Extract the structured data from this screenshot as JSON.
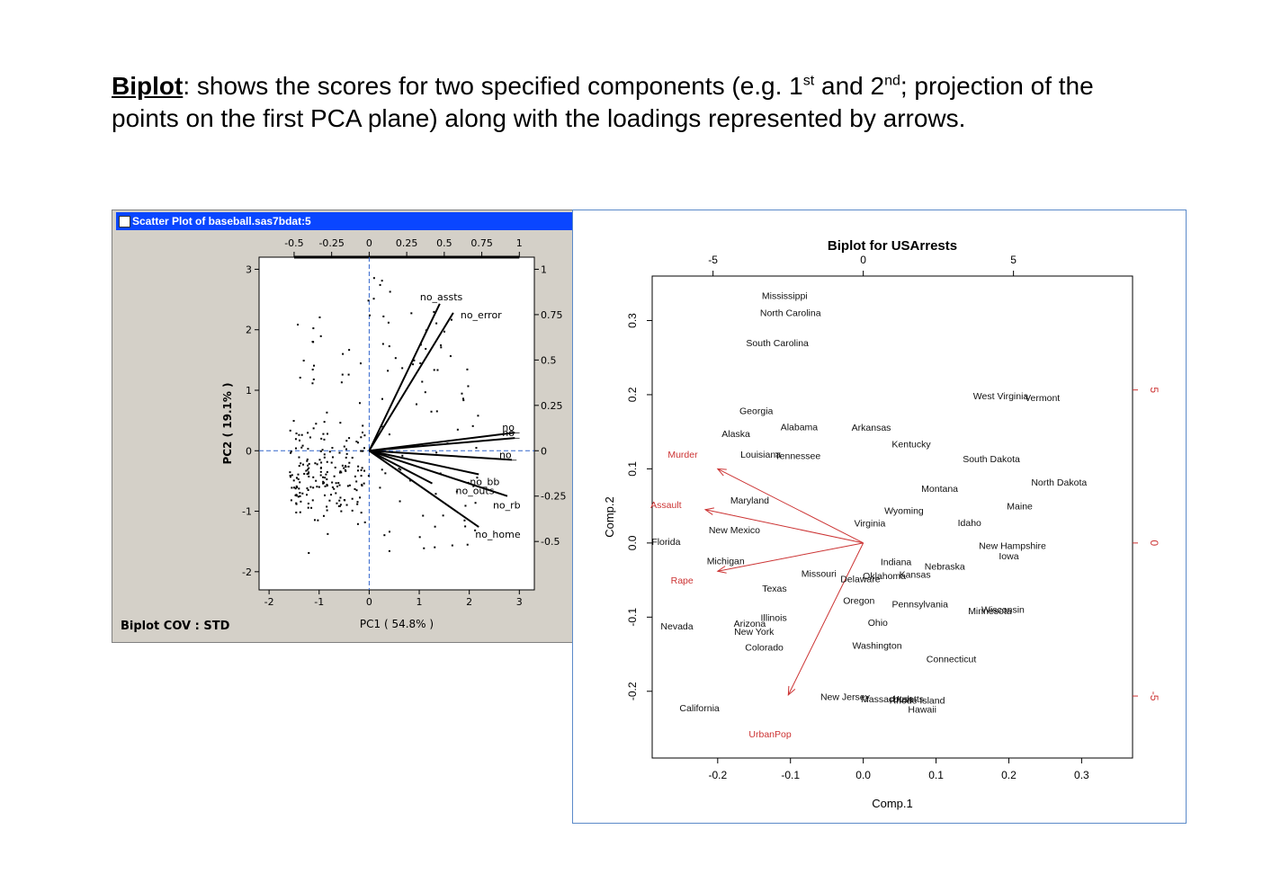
{
  "heading": {
    "keyword": "Biplot",
    "part1": ": shows the scores for two specified components (e.g. 1",
    "sup1": "st",
    "part2": " and 2",
    "sup2": "nd",
    "part3": "; projection of the points on the first PCA plane) along with the loadings represented by arrows."
  },
  "left_window": {
    "title": "Scatter Plot of baseball.sas7bdat:5",
    "footer": "Biplot COV : STD"
  },
  "colors": {
    "accent": "#cc3333",
    "dashed": "#3366cc",
    "titlebar": "#0a46ff"
  },
  "chart_data": [
    {
      "type": "scatter",
      "title": "",
      "xlabel": "PC1 ( 54.8% )",
      "ylabel": "PC2 ( 19.1% )",
      "xlim": [
        -2.2,
        3.3
      ],
      "ylim": [
        -2.3,
        3.2
      ],
      "xticks": [
        "-2",
        "-1",
        "0",
        "1",
        "2",
        "3"
      ],
      "yticks": [
        "-2",
        "-1",
        "0",
        "1",
        "2",
        "3"
      ],
      "top_ticks": [
        "-0.5",
        "-0.25",
        "0",
        "0.25",
        "0.5",
        "0.75",
        "1"
      ],
      "right_ticks": [
        "-0.5",
        "-0.25",
        "0",
        "0.25",
        "0.5",
        "0.75",
        "1"
      ],
      "loadings": [
        {
          "name": "no_assts",
          "x": 0.47,
          "y": 0.81
        },
        {
          "name": "no_error",
          "x": 0.56,
          "y": 0.76
        },
        {
          "name": "no_",
          "x": 0.97,
          "y": 0.1
        },
        {
          "name": "no_",
          "x": 0.97,
          "y": 0.07
        },
        {
          "name": "no_",
          "x": 0.95,
          "y": -0.05
        },
        {
          "name": "no_bb",
          "x": 0.73,
          "y": -0.13
        },
        {
          "name": "no_outs",
          "x": 0.42,
          "y": -0.18
        },
        {
          "name": "no_rb",
          "x": 0.92,
          "y": -0.25
        },
        {
          "name": "no_home",
          "x": 0.73,
          "y": -0.42
        }
      ]
    },
    {
      "type": "scatter",
      "title": "Biplot for USArrests",
      "xlabel": "Comp.1",
      "ylabel": "Comp.2",
      "xlim": [
        -0.29,
        0.37
      ],
      "ylim": [
        -0.29,
        0.36
      ],
      "xticks": [
        "-0.2",
        "-0.1",
        "0.0",
        "0.1",
        "0.2",
        "0.3"
      ],
      "yticks": [
        "-0.2",
        "-0.1",
        "0.0",
        "0.1",
        "0.2",
        "0.3"
      ],
      "top_ticks": [
        "-5",
        "0",
        "5"
      ],
      "right_ticks": [
        "-5",
        "0",
        "5"
      ],
      "points": [
        {
          "label": "Mississippi",
          "x": -0.108,
          "y": 0.334
        },
        {
          "label": "North Carolina",
          "x": -0.1,
          "y": 0.311
        },
        {
          "label": "South Carolina",
          "x": -0.118,
          "y": 0.27
        },
        {
          "label": "Georgia",
          "x": -0.147,
          "y": 0.179
        },
        {
          "label": "Alaska",
          "x": -0.175,
          "y": 0.148
        },
        {
          "label": "Alabama",
          "x": -0.088,
          "y": 0.157
        },
        {
          "label": "Arkansas",
          "x": 0.011,
          "y": 0.156
        },
        {
          "label": "Kentucky",
          "x": 0.066,
          "y": 0.134
        },
        {
          "label": "West Virginia",
          "x": 0.189,
          "y": 0.199
        },
        {
          "label": "Vermont",
          "x": 0.246,
          "y": 0.196
        },
        {
          "label": "Murder",
          "x": -0.248,
          "y": 0.12,
          "red": true
        },
        {
          "label": "Louisiana",
          "x": -0.141,
          "y": 0.12
        },
        {
          "label": "Tennessee",
          "x": -0.09,
          "y": 0.118
        },
        {
          "label": "South Dakota",
          "x": 0.176,
          "y": 0.114
        },
        {
          "label": "North Dakota",
          "x": 0.269,
          "y": 0.082
        },
        {
          "label": "Montana",
          "x": 0.105,
          "y": 0.074
        },
        {
          "label": "Maryland",
          "x": -0.156,
          "y": 0.058
        },
        {
          "label": "Assault",
          "x": -0.271,
          "y": 0.052,
          "red": true
        },
        {
          "label": "Maine",
          "x": 0.215,
          "y": 0.05
        },
        {
          "label": "Wyoming",
          "x": 0.056,
          "y": 0.044
        },
        {
          "label": "Virginia",
          "x": 0.009,
          "y": 0.027
        },
        {
          "label": "Idaho",
          "x": 0.146,
          "y": 0.028
        },
        {
          "label": "New Mexico",
          "x": -0.177,
          "y": 0.018
        },
        {
          "label": "Florida",
          "x": -0.271,
          "y": 0.002
        },
        {
          "label": "New Hampshire",
          "x": 0.205,
          "y": -0.003
        },
        {
          "label": "Iowa",
          "x": 0.2,
          "y": -0.017
        },
        {
          "label": "Michigan",
          "x": -0.189,
          "y": -0.024
        },
        {
          "label": "Indiana",
          "x": 0.045,
          "y": -0.025
        },
        {
          "label": "Nebraska",
          "x": 0.112,
          "y": -0.031
        },
        {
          "label": "Missouri",
          "x": -0.061,
          "y": -0.041
        },
        {
          "label": "Kansas",
          "x": 0.071,
          "y": -0.042
        },
        {
          "label": "Oklahoma",
          "x": 0.029,
          "y": -0.044
        },
        {
          "label": "Delaware",
          "x": -0.004,
          "y": -0.048
        },
        {
          "label": "Rape",
          "x": -0.249,
          "y": -0.05,
          "red": true
        },
        {
          "label": "Texas",
          "x": -0.122,
          "y": -0.061
        },
        {
          "label": "Oregon",
          "x": -0.006,
          "y": -0.077
        },
        {
          "label": "Pennsylvania",
          "x": 0.078,
          "y": -0.082
        },
        {
          "label": "Wisconsin",
          "x": 0.192,
          "y": -0.089
        },
        {
          "label": "Minnesota",
          "x": 0.174,
          "y": -0.091
        },
        {
          "label": "Illinois",
          "x": -0.123,
          "y": -0.1
        },
        {
          "label": "Ohio",
          "x": 0.02,
          "y": -0.107
        },
        {
          "label": "Nevada",
          "x": -0.256,
          "y": -0.112
        },
        {
          "label": "Arizona",
          "x": -0.156,
          "y": -0.108
        },
        {
          "label": "New York",
          "x": -0.15,
          "y": -0.119
        },
        {
          "label": "Colorado",
          "x": -0.136,
          "y": -0.14
        },
        {
          "label": "Washington",
          "x": 0.019,
          "y": -0.138
        },
        {
          "label": "Connecticut",
          "x": 0.121,
          "y": -0.156
        },
        {
          "label": "New Jersey",
          "x": -0.025,
          "y": -0.207
        },
        {
          "label": "Massachusetts",
          "x": 0.04,
          "y": -0.21
        },
        {
          "label": "Utah",
          "x": 0.054,
          "y": -0.21
        },
        {
          "label": "Rhode Island",
          "x": 0.074,
          "y": -0.212
        },
        {
          "label": "California",
          "x": -0.225,
          "y": -0.222
        },
        {
          "label": "Hawaii",
          "x": 0.081,
          "y": -0.224
        },
        {
          "label": "UrbanPop",
          "x": -0.128,
          "y": -0.257,
          "red": true
        }
      ],
      "arrows": [
        {
          "name": "Murder",
          "x": -0.2,
          "y": 0.1
        },
        {
          "name": "Assault",
          "x": -0.217,
          "y": 0.045
        },
        {
          "name": "Rape",
          "x": -0.2,
          "y": -0.038
        },
        {
          "name": "UrbanPop",
          "x": -0.103,
          "y": -0.205
        }
      ]
    }
  ]
}
